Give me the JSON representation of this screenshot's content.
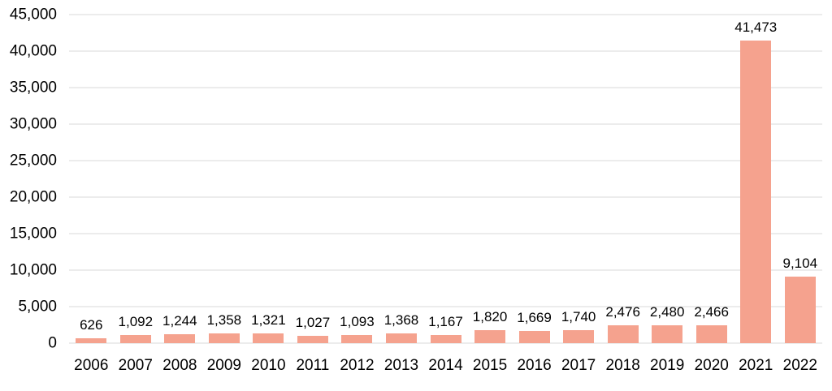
{
  "chart_data": {
    "type": "bar",
    "title": "",
    "xlabel": "",
    "ylabel": "",
    "categories": [
      "2006",
      "2007",
      "2008",
      "2009",
      "2010",
      "2011",
      "2012",
      "2013",
      "2014",
      "2015",
      "2016",
      "2017",
      "2018",
      "2019",
      "2020",
      "2021",
      "2022"
    ],
    "values": [
      626,
      1092,
      1244,
      1358,
      1321,
      1027,
      1093,
      1368,
      1167,
      1820,
      1669,
      1740,
      2476,
      2480,
      2466,
      41473,
      9104
    ],
    "value_labels": [
      "626",
      "1,092",
      "1,244",
      "1,358",
      "1,321",
      "1,027",
      "1,093",
      "1,368",
      "1,167",
      "1,820",
      "1,669",
      "1,740",
      "2,476",
      "2,480",
      "2,466",
      "41,473",
      "9,104"
    ],
    "ylim": [
      0,
      45000
    ],
    "y_tick_values": [
      45000,
      40000,
      35000,
      30000,
      25000,
      20000,
      15000,
      10000,
      5000,
      0
    ],
    "y_tick_labels": [
      "45,000",
      "40,000",
      "35,000",
      "30,000",
      "25,000",
      "20,000",
      "15,000",
      "10,000",
      "5,000",
      "0"
    ],
    "grid": true,
    "legend": false,
    "colors": {
      "bar": "#F5A28E",
      "gridline": "#D9D9D9",
      "text": "#000000",
      "background": "#FFFFFF"
    }
  }
}
